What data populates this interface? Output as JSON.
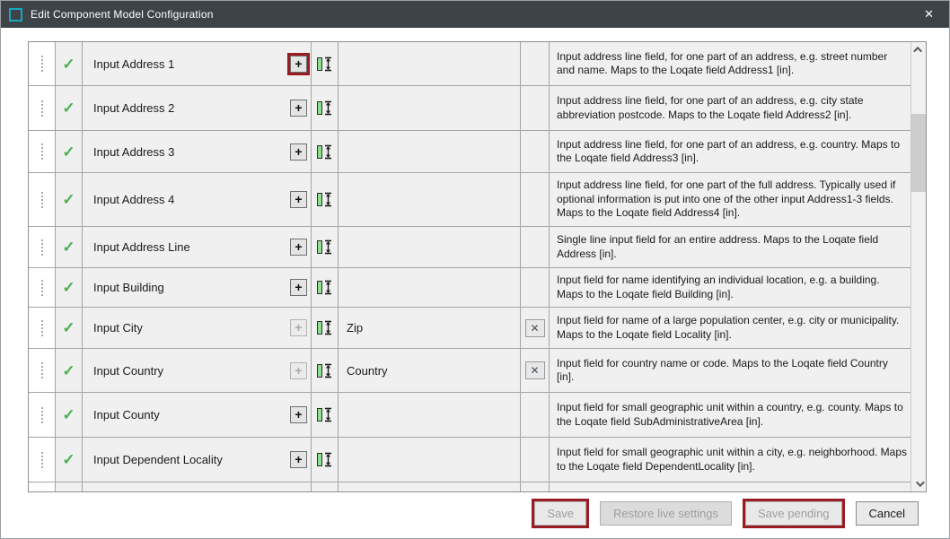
{
  "window": {
    "title": "Edit Component Model Configuration",
    "close_glyph": "✕"
  },
  "table": {
    "rows": [
      {
        "name": "Input Address 1",
        "value": "",
        "clearable": false,
        "add_enabled": true,
        "add_highlighted": true,
        "enabled": true,
        "partial": false,
        "desc": "Input address line field, for one part of an address, e.g. street number and name. Maps to the Loqate field Address1 [in]."
      },
      {
        "name": "Input Address 2",
        "value": "",
        "clearable": false,
        "add_enabled": true,
        "add_highlighted": false,
        "enabled": true,
        "partial": false,
        "desc": "Input address line field, for one part of an address, e.g. city state abbreviation postcode. Maps to the Loqate field Address2 [in]."
      },
      {
        "name": "Input Address 3",
        "value": "",
        "clearable": false,
        "add_enabled": true,
        "add_highlighted": false,
        "enabled": true,
        "partial": false,
        "desc": "Input address line field, for one part of an address, e.g. country. Maps to the Loqate field Address3 [in]."
      },
      {
        "name": "Input Address 4",
        "value": "",
        "clearable": false,
        "add_enabled": true,
        "add_highlighted": false,
        "enabled": true,
        "partial": false,
        "desc": "Input address line field, for one part of the full address. Typically used if optional information is put into one of the other input Address1-3 fields. Maps to the Loqate field Address4 [in]."
      },
      {
        "name": "Input Address Line",
        "value": "",
        "clearable": false,
        "add_enabled": true,
        "add_highlighted": false,
        "enabled": true,
        "partial": false,
        "desc": "Single line input field for an entire address. Maps to the Loqate field Address [in]."
      },
      {
        "name": "Input Building",
        "value": "",
        "clearable": false,
        "add_enabled": true,
        "add_highlighted": false,
        "enabled": true,
        "partial": false,
        "desc": "Input field for name identifying an individual location, e.g. a building. Maps to the Loqate field Building [in]."
      },
      {
        "name": "Input City",
        "value": "Zip",
        "clearable": true,
        "add_enabled": false,
        "add_highlighted": false,
        "enabled": true,
        "partial": false,
        "desc": "Input field for name of a large population center, e.g. city or municipality. Maps to the Loqate field Locality [in]."
      },
      {
        "name": "Input Country",
        "value": "Country",
        "clearable": true,
        "add_enabled": false,
        "add_highlighted": false,
        "enabled": true,
        "partial": false,
        "desc": "Input field for country name or code. Maps to the Loqate field Country [in]."
      },
      {
        "name": "Input County",
        "value": "",
        "clearable": false,
        "add_enabled": true,
        "add_highlighted": false,
        "enabled": true,
        "partial": false,
        "desc": "Input field for small geographic unit within a country, e.g. county. Maps to the Loqate field SubAdministrativeArea [in]."
      },
      {
        "name": "Input Dependent Locality",
        "value": "",
        "clearable": false,
        "add_enabled": true,
        "add_highlighted": false,
        "enabled": true,
        "partial": false,
        "desc": "Input field for small geographic unit within a city, e.g. neighborhood. Maps to the Loqate field DependentLocality [in]."
      },
      {
        "name": "",
        "value": "",
        "clearable": false,
        "add_enabled": false,
        "add_highlighted": false,
        "enabled": false,
        "partial": true,
        "desc": ""
      }
    ]
  },
  "footer": {
    "save": {
      "label": "Save",
      "disabled": true,
      "highlighted": true
    },
    "restore": {
      "label": "Restore live settings",
      "disabled": true,
      "highlighted": false
    },
    "save_pending": {
      "label": "Save pending",
      "disabled": true,
      "highlighted": true
    },
    "cancel": {
      "label": "Cancel",
      "disabled": false,
      "highlighted": false
    }
  },
  "colors": {
    "titlebar": "#3e4347",
    "icon_teal": "#14a8c0",
    "check_green": "#4db052",
    "highlight_red": "#9a1c22"
  }
}
